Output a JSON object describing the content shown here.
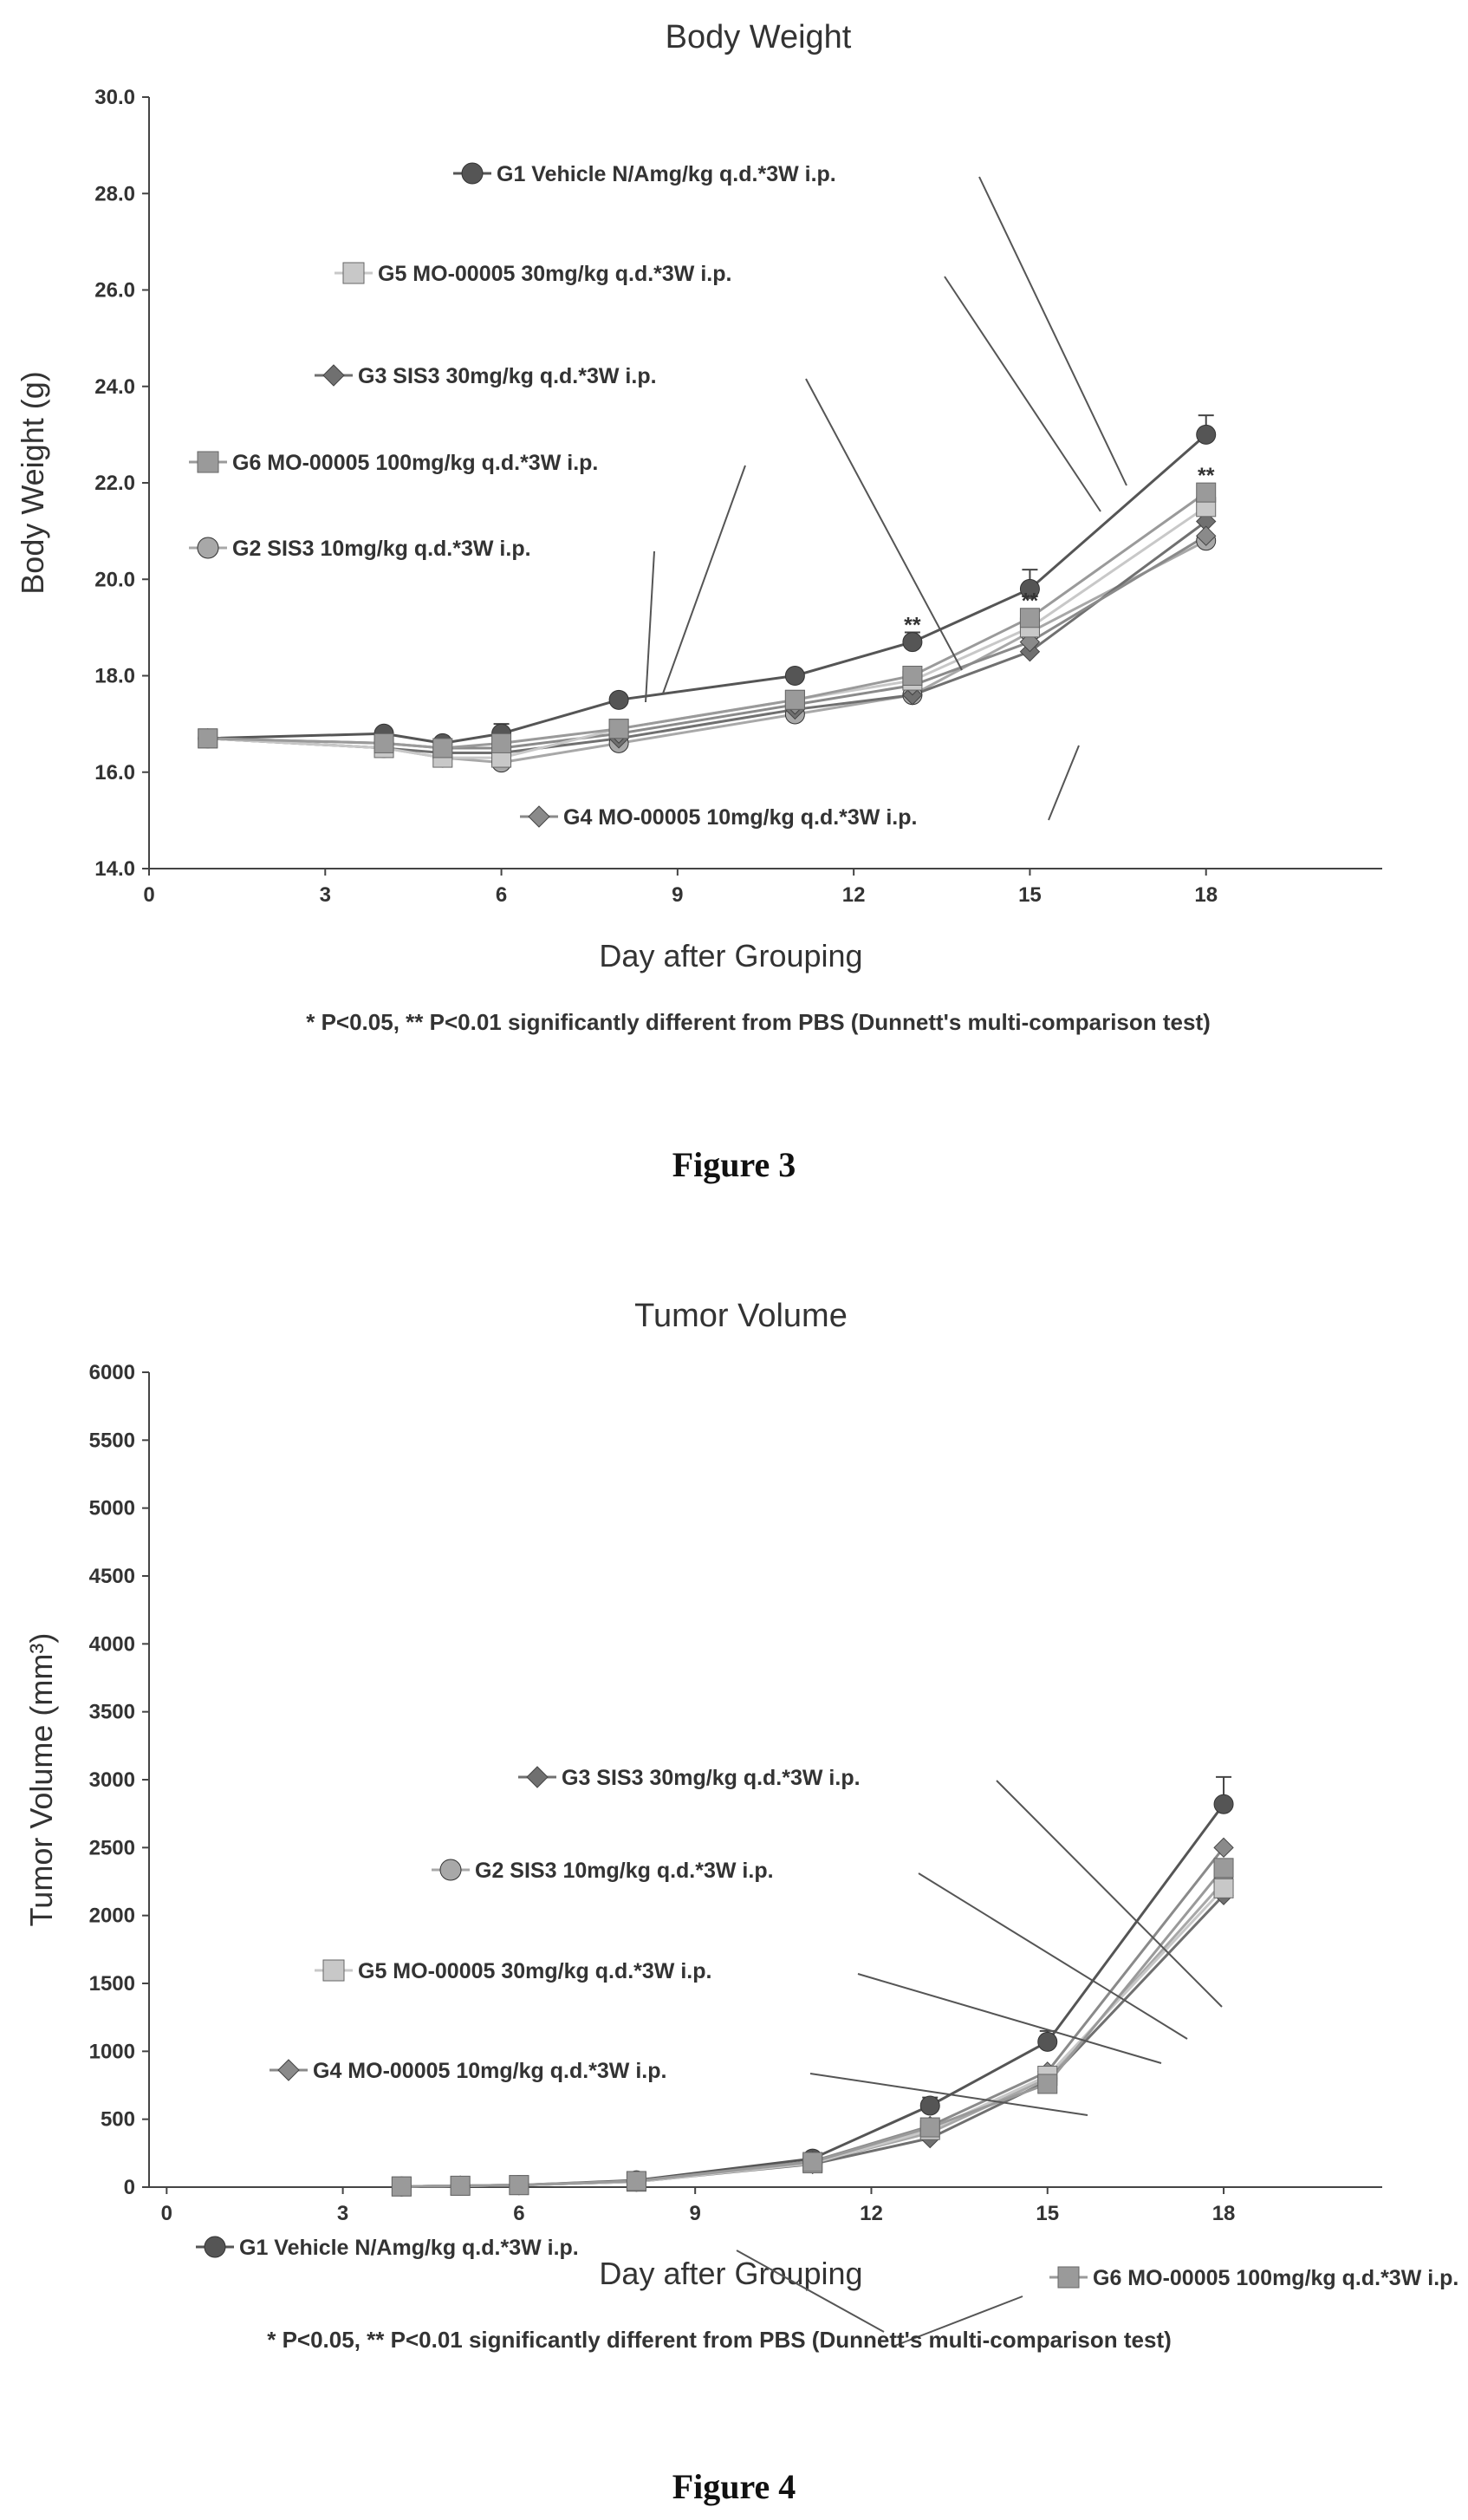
{
  "charts": [
    {
      "figure_caption": "Figure 3",
      "footnote": "* P<0.05, ** P<0.01 significantly different from PBS (Dunnett's multi-comparison test)",
      "chart_data": {
        "type": "line",
        "title": "Body Weight",
        "xlabel": "Day after Grouping",
        "ylabel": "Body Weight (g)",
        "xlim": [
          0,
          21
        ],
        "ylim": [
          14.0,
          30.0
        ],
        "xticks": [
          0,
          3,
          6,
          9,
          12,
          15,
          18
        ],
        "xtick_labels": [
          "0",
          "3",
          "6",
          "9",
          "12",
          "15",
          "18"
        ],
        "yticks": [
          14.0,
          16.0,
          18.0,
          20.0,
          22.0,
          24.0,
          26.0,
          28.0,
          30.0
        ],
        "ytick_labels": [
          "14.0",
          "16.0",
          "18.0",
          "20.0",
          "22.0",
          "24.0",
          "26.0",
          "28.0",
          "30.0"
        ],
        "x": [
          1,
          4,
          5,
          6,
          8,
          11,
          13,
          15,
          18
        ],
        "series": [
          {
            "name": "G1 Vehicle  N/Amg/kg  q.d.*3W  i.p.",
            "values": [
              16.7,
              16.8,
              16.6,
              16.8,
              17.5,
              18.0,
              18.7,
              19.8,
              23.0
            ],
            "error_top": [
              16.7,
              16.9,
              16.7,
              17.0,
              17.6,
              18.1,
              18.9,
              20.2,
              23.4
            ],
            "color": "#555555",
            "marker": "circle"
          },
          {
            "name": "G2 SIS3  10mg/kg  q.d.*3W  i.p.",
            "values": [
              16.7,
              16.5,
              16.3,
              16.2,
              16.6,
              17.2,
              17.6,
              18.9,
              20.8
            ],
            "error_top": [],
            "color": "#a8a8a8",
            "marker": "circle"
          },
          {
            "name": "G3 SIS3  30mg/kg  q.d.*3W  i.p.",
            "values": [
              16.7,
              16.5,
              16.4,
              16.4,
              16.7,
              17.3,
              17.6,
              18.5,
              21.2
            ],
            "error_top": [],
            "color": "#707070",
            "marker": "diamond"
          },
          {
            "name": "G4 MO-00005  10mg/kg  q.d.*3W  i.p.",
            "values": [
              16.7,
              16.6,
              16.5,
              16.5,
              16.8,
              17.4,
              17.8,
              18.7,
              20.9
            ],
            "error_top": [],
            "color": "#8a8a8a",
            "marker": "diamond"
          },
          {
            "name": "G5 MO-00005  30mg/kg  q.d.*3W  i.p.",
            "values": [
              16.7,
              16.5,
              16.3,
              16.3,
              16.9,
              17.5,
              17.9,
              19.0,
              21.5
            ],
            "error_top": [],
            "color": "#c8c8c8",
            "marker": "square"
          },
          {
            "name": "G6 MO-00005  100mg/kg  q.d.*3W  i.p.",
            "values": [
              16.7,
              16.6,
              16.5,
              16.6,
              16.9,
              17.5,
              18.0,
              19.2,
              21.8
            ],
            "error_top": [],
            "color": "#9a9a9a",
            "marker": "square"
          }
        ],
        "significance": [
          {
            "x": 13,
            "y": 18.9,
            "text": "**"
          },
          {
            "x": 15,
            "y": 19.4,
            "text": "**"
          },
          {
            "x": 18,
            "y": 22.0,
            "text": "**"
          }
        ],
        "legend_placement": "callouts with leader lines",
        "grid": false
      }
    },
    {
      "figure_caption": "Figure 4",
      "footnote": "* P<0.05, ** P<0.01 significantly different from PBS (Dunnett's multi-comparison test)",
      "chart_data": {
        "type": "line",
        "title": "Tumor Volume",
        "xlabel": "Day after Grouping",
        "ylabel": "Tumor Volume (mm³)",
        "xlim": [
          -0.3,
          20.7
        ],
        "ylim": [
          0,
          6000
        ],
        "xticks": [
          0,
          3,
          6,
          9,
          12,
          15,
          18
        ],
        "xtick_labels": [
          "0",
          "3",
          "6",
          "9",
          "12",
          "15",
          "18"
        ],
        "yticks": [
          0,
          500,
          1000,
          1500,
          2000,
          2500,
          3000,
          3500,
          4000,
          4500,
          5000,
          5500,
          6000
        ],
        "ytick_labels": [
          "0",
          "500",
          "1000",
          "1500",
          "2000",
          "2500",
          "3000",
          "3500",
          "4000",
          "4500",
          "5000",
          "5500",
          "6000"
        ],
        "x": [
          4,
          5,
          6,
          8,
          11,
          13,
          15,
          18
        ],
        "series": [
          {
            "name": "G1 Vehicle  N/Amg/kg  q.d.*3W  i.p.",
            "values": [
              5,
              10,
              15,
              50,
              210,
              600,
              1070,
              2820
            ],
            "error_top": [
              10,
              15,
              20,
              60,
              240,
              660,
              1150,
              3020
            ],
            "color": "#555555",
            "marker": "circle"
          },
          {
            "name": "G2 SIS3  10mg/kg  q.d.*3W  i.p.",
            "values": [
              5,
              10,
              15,
              40,
              180,
              400,
              800,
              2250
            ],
            "error_top": [],
            "color": "#a8a8a8",
            "marker": "circle"
          },
          {
            "name": "G3 SIS3  30mg/kg  q.d.*3W  i.p.",
            "values": [
              5,
              10,
              15,
              40,
              170,
              360,
              780,
              2150
            ],
            "error_top": [],
            "color": "#707070",
            "marker": "diamond"
          },
          {
            "name": "G4 MO-00005  10mg/kg  q.d.*3W  i.p.",
            "values": [
              5,
              10,
              15,
              45,
              190,
              450,
              850,
              2500
            ],
            "error_top": [],
            "color": "#8a8a8a",
            "marker": "diamond"
          },
          {
            "name": "G5 MO-00005  30mg/kg  q.d.*3W  i.p.",
            "values": [
              5,
              10,
              15,
              40,
              175,
              420,
              820,
              2200
            ],
            "error_top": [],
            "color": "#c8c8c8",
            "marker": "square"
          },
          {
            "name": "G6 MO-00005  100mg/kg  q.d.*3W  i.p.",
            "values": [
              5,
              10,
              15,
              45,
              185,
              440,
              760,
              2350
            ],
            "error_top": [],
            "color": "#9a9a9a",
            "marker": "square"
          }
        ],
        "legend_placement": "callouts with leader lines",
        "grid": false
      }
    }
  ]
}
